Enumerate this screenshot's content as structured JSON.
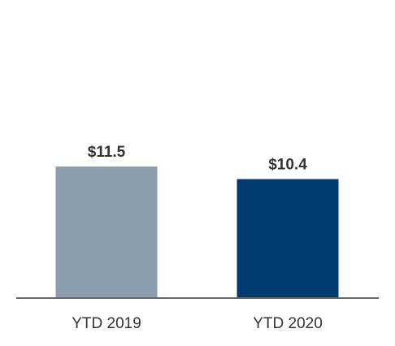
{
  "chart_data": {
    "type": "bar",
    "title": "",
    "xlabel": "",
    "ylabel": "",
    "categories": [
      "YTD 2019",
      "YTD 2020"
    ],
    "values": [
      11.5,
      10.4
    ],
    "data_labels": [
      "$11.5",
      "$10.4"
    ],
    "bar_colors": [
      "#8a9eb0",
      "#003a6e"
    ],
    "axis_color": "#666666",
    "ylim": [
      0,
      23
    ],
    "grid": false,
    "legend": "none"
  }
}
